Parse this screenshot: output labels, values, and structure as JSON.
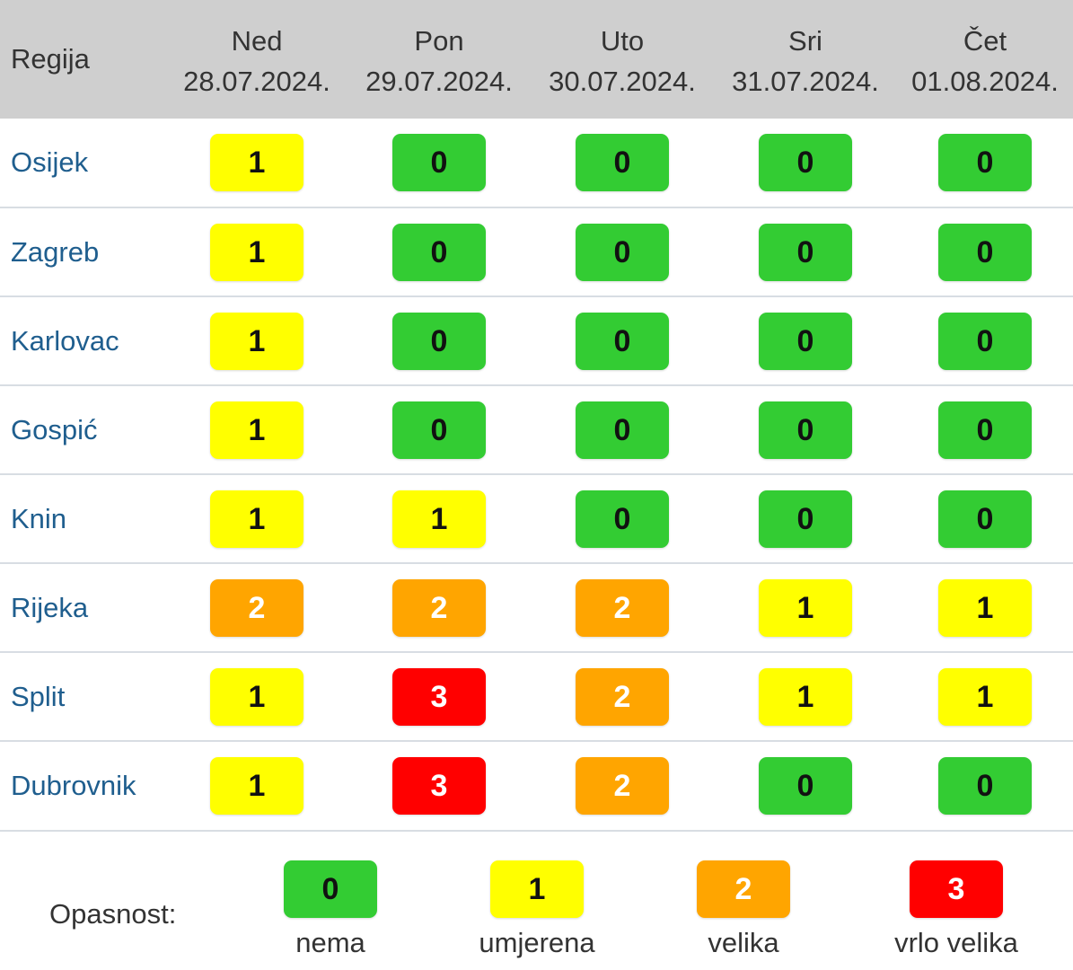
{
  "header": {
    "region_label": "Regija",
    "days": [
      {
        "day": "Ned",
        "date": "28.07.2024."
      },
      {
        "day": "Pon",
        "date": "29.07.2024."
      },
      {
        "day": "Uto",
        "date": "30.07.2024."
      },
      {
        "day": "Sri",
        "date": "31.07.2024."
      },
      {
        "day": "Čet",
        "date": "01.08.2024."
      }
    ]
  },
  "rows": [
    {
      "region": "Osijek",
      "levels": [
        "1",
        "0",
        "0",
        "0",
        "0"
      ]
    },
    {
      "region": "Zagreb",
      "levels": [
        "1",
        "0",
        "0",
        "0",
        "0"
      ]
    },
    {
      "region": "Karlovac",
      "levels": [
        "1",
        "0",
        "0",
        "0",
        "0"
      ]
    },
    {
      "region": "Gospić",
      "levels": [
        "1",
        "0",
        "0",
        "0",
        "0"
      ]
    },
    {
      "region": "Knin",
      "levels": [
        "1",
        "1",
        "0",
        "0",
        "0"
      ]
    },
    {
      "region": "Rijeka",
      "levels": [
        "2",
        "2",
        "2",
        "1",
        "1"
      ]
    },
    {
      "region": "Split",
      "levels": [
        "1",
        "3",
        "2",
        "1",
        "1"
      ]
    },
    {
      "region": "Dubrovnik",
      "levels": [
        "1",
        "3",
        "2",
        "0",
        "0"
      ]
    }
  ],
  "legend": {
    "title": "Opasnost:",
    "items": [
      {
        "level": "0",
        "label": "nema"
      },
      {
        "level": "1",
        "label": "umjerena"
      },
      {
        "level": "2",
        "label": "velika"
      },
      {
        "level": "3",
        "label": "vrlo velika"
      }
    ]
  },
  "colors": {
    "level_0": "#33cc33",
    "level_1": "#ffff00",
    "level_2": "#ffa500",
    "level_3": "#ff0000",
    "header_bg": "#cfcfcf",
    "region_text": "#1f5e8e"
  }
}
